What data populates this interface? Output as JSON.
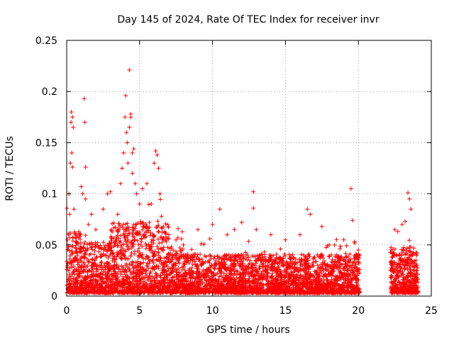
{
  "chart_data": {
    "type": "scatter",
    "title": "Day 145 of 2024, Rate Of TEC Index for receiver invr",
    "xlabel": "GPS time / hours",
    "ylabel": "ROTI / TECUs",
    "xlim": [
      0,
      25
    ],
    "ylim": [
      0,
      0.25
    ],
    "x_ticks": [
      0,
      5,
      10,
      15,
      20,
      25
    ],
    "y_ticks": [
      0,
      0.05,
      0.1,
      0.15,
      0.2,
      0.25
    ],
    "x_tick_labels": [
      "0",
      "5",
      "10",
      "15",
      "20",
      "25"
    ],
    "y_tick_labels": [
      "0",
      "0.05",
      "0.1",
      "0.15",
      "0.2",
      "0.25"
    ],
    "grid": true,
    "marker": "+",
    "color": "#ff0000",
    "data_gap_hours": [
      20.1,
      22.2
    ],
    "series": [
      {
        "name": "ROTI",
        "points": [
          [
            0.1,
            0.05
          ],
          [
            0.15,
            0.1
          ],
          [
            0.2,
            0.08
          ],
          [
            0.25,
            0.13
          ],
          [
            0.3,
            0.17
          ],
          [
            0.32,
            0.18
          ],
          [
            0.35,
            0.14
          ],
          [
            0.4,
            0.126
          ],
          [
            0.4,
            0.175
          ],
          [
            0.45,
            0.165
          ],
          [
            0.5,
            0.085
          ],
          [
            0.6,
            0.06
          ],
          [
            1.0,
            0.107
          ],
          [
            1.1,
            0.1
          ],
          [
            1.2,
            0.193
          ],
          [
            1.25,
            0.17
          ],
          [
            1.3,
            0.126
          ],
          [
            1.3,
            0.095
          ],
          [
            1.5,
            0.07
          ],
          [
            1.7,
            0.08
          ],
          [
            2.0,
            0.065
          ],
          [
            2.5,
            0.085
          ],
          [
            2.8,
            0.1
          ],
          [
            3.0,
            0.102
          ],
          [
            3.5,
            0.08
          ],
          [
            3.7,
            0.11
          ],
          [
            3.8,
            0.125
          ],
          [
            3.9,
            0.14
          ],
          [
            4.0,
            0.175
          ],
          [
            4.05,
            0.196
          ],
          [
            4.1,
            0.16
          ],
          [
            4.15,
            0.15
          ],
          [
            4.2,
            0.13
          ],
          [
            4.3,
            0.221
          ],
          [
            4.3,
            0.165
          ],
          [
            4.4,
            0.175
          ],
          [
            4.4,
            0.178
          ],
          [
            4.5,
            0.14
          ],
          [
            4.5,
            0.12
          ],
          [
            4.6,
            0.144
          ],
          [
            4.7,
            0.11
          ],
          [
            4.8,
            0.1
          ],
          [
            5.0,
            0.09
          ],
          [
            5.2,
            0.105
          ],
          [
            5.5,
            0.11
          ],
          [
            5.8,
            0.09
          ],
          [
            6.0,
            0.13
          ],
          [
            6.1,
            0.142
          ],
          [
            6.2,
            0.138
          ],
          [
            6.3,
            0.125
          ],
          [
            6.4,
            0.1
          ],
          [
            6.5,
            0.078
          ],
          [
            7.0,
            0.06
          ],
          [
            7.5,
            0.055
          ],
          [
            8.0,
            0.05
          ],
          [
            9.0,
            0.065
          ],
          [
            10.0,
            0.07
          ],
          [
            10.5,
            0.085
          ],
          [
            11.0,
            0.06
          ],
          [
            11.5,
            0.065
          ],
          [
            12.0,
            0.072
          ],
          [
            12.8,
            0.102
          ],
          [
            12.8,
            0.086
          ],
          [
            13.0,
            0.065
          ],
          [
            14.0,
            0.06
          ],
          [
            15.0,
            0.055
          ],
          [
            16.0,
            0.06
          ],
          [
            16.5,
            0.085
          ],
          [
            16.7,
            0.08
          ],
          [
            17.5,
            0.068
          ],
          [
            18.0,
            0.05
          ],
          [
            19.0,
            0.055
          ],
          [
            19.5,
            0.105
          ],
          [
            19.6,
            0.074
          ],
          [
            20.0,
            0.045
          ],
          [
            22.5,
            0.065
          ],
          [
            23.0,
            0.07
          ],
          [
            23.2,
            0.073
          ],
          [
            23.4,
            0.101
          ],
          [
            23.5,
            0.095
          ],
          [
            23.6,
            0.085
          ],
          [
            24.0,
            0.03
          ]
        ]
      }
    ]
  }
}
